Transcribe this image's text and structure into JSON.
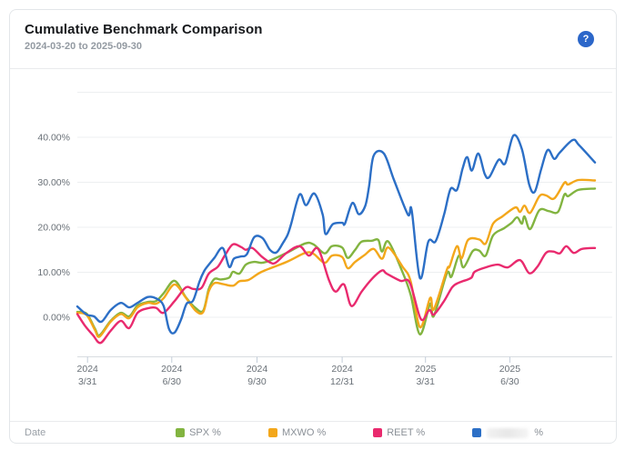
{
  "header": {
    "title": "Cumulative Benchmark Comparison",
    "subtitle": "2024-03-20 to 2025-09-30",
    "help_icon": "?"
  },
  "legend": {
    "date_label": "Date",
    "position": "bottom"
  },
  "colors": {
    "spx": "#82b440",
    "mxwo": "#f3a71b",
    "reet": "#e92a6e",
    "series4": "#2c6fc6",
    "help_badge": "#2b66c9",
    "grid": "#edeff1",
    "axis_line": "#d8dce1",
    "tick": "#c3cdd8",
    "axis_text": "#697077"
  },
  "chart_data": {
    "type": "line",
    "title": "Cumulative Benchmark Comparison",
    "xlabel": "Date",
    "ylabel": "",
    "unit": "%",
    "grid": true,
    "legend_position": "bottom",
    "x_range": [
      "2024-03-20",
      "2025-09-30"
    ],
    "ylim": [
      -8.5,
      52
    ],
    "y_axis": {
      "tick_values": [
        40,
        30,
        20,
        10,
        0
      ],
      "tick_labels": [
        "40.00%",
        "30.00%",
        "20.00%",
        "10.00%",
        "0.00%"
      ],
      "unlabeled_gridlines": [
        50
      ]
    },
    "x_axis": {
      "ticks": [
        {
          "year": "2024",
          "md": "3/31",
          "date": "2024-03-31"
        },
        {
          "year": "2024",
          "md": "6/30",
          "date": "2024-06-30"
        },
        {
          "year": "2024",
          "md": "9/30",
          "date": "2024-09-30"
        },
        {
          "year": "2024",
          "md": "12/31",
          "date": "2024-12-31"
        },
        {
          "year": "2025",
          "md": "3/31",
          "date": "2025-03-31"
        },
        {
          "year": "2025",
          "md": "6/30",
          "date": "2025-06-30"
        }
      ]
    },
    "series": [
      {
        "key": "spx",
        "label": "SPX %",
        "color": "#82b440",
        "obscured": false,
        "points": [
          [
            "2024-03-20",
            1.2
          ],
          [
            "2024-03-30",
            0.8
          ],
          [
            "2024-04-08",
            -2.5
          ],
          [
            "2024-04-13",
            -4.0
          ],
          [
            "2024-04-25",
            -0.8
          ],
          [
            "2024-05-06",
            1.0
          ],
          [
            "2024-05-15",
            0.2
          ],
          [
            "2024-05-24",
            2.6
          ],
          [
            "2024-06-04",
            3.4
          ],
          [
            "2024-06-13",
            3.6
          ],
          [
            "2024-06-21",
            5.3
          ],
          [
            "2024-07-03",
            8.1
          ],
          [
            "2024-07-15",
            4.5
          ],
          [
            "2024-07-26",
            2.0
          ],
          [
            "2024-08-03",
            1.5
          ],
          [
            "2024-08-09",
            6.3
          ],
          [
            "2024-08-15",
            8.5
          ],
          [
            "2024-08-22",
            8.4
          ],
          [
            "2024-08-31",
            8.8
          ],
          [
            "2024-09-04",
            10.1
          ],
          [
            "2024-09-11",
            9.7
          ],
          [
            "2024-09-18",
            11.7
          ],
          [
            "2024-09-27",
            12.3
          ],
          [
            "2024-10-05",
            12.1
          ],
          [
            "2024-10-14",
            12.6
          ],
          [
            "2024-11-01",
            14.3
          ],
          [
            "2024-11-21",
            16.4
          ],
          [
            "2024-11-30",
            16.2
          ],
          [
            "2024-12-12",
            14.2
          ],
          [
            "2024-12-20",
            15.8
          ],
          [
            "2024-12-31",
            15.5
          ],
          [
            "2025-01-06",
            13.2
          ],
          [
            "2025-01-14",
            15.0
          ],
          [
            "2025-01-21",
            16.8
          ],
          [
            "2025-02-01",
            17.0
          ],
          [
            "2025-02-08",
            17.2
          ],
          [
            "2025-02-12",
            14.6
          ],
          [
            "2025-02-19",
            16.8
          ],
          [
            "2025-03-06",
            10.1
          ],
          [
            "2025-03-15",
            5.0
          ],
          [
            "2025-03-25",
            -3.8
          ],
          [
            "2025-04-05",
            3.0
          ],
          [
            "2025-04-09",
            0.3
          ],
          [
            "2025-04-23",
            9.7
          ],
          [
            "2025-04-28",
            9.0
          ],
          [
            "2025-05-06",
            13.7
          ],
          [
            "2025-05-11",
            11.1
          ],
          [
            "2025-05-21",
            14.7
          ],
          [
            "2025-05-28",
            14.8
          ],
          [
            "2025-06-04",
            13.7
          ],
          [
            "2025-06-12",
            18.2
          ],
          [
            "2025-06-24",
            19.8
          ],
          [
            "2025-07-02",
            21.0
          ],
          [
            "2025-07-08",
            22.2
          ],
          [
            "2025-07-13",
            20.8
          ],
          [
            "2025-07-16",
            22.4
          ],
          [
            "2025-07-22",
            19.6
          ],
          [
            "2025-08-01",
            23.8
          ],
          [
            "2025-08-11",
            23.6
          ],
          [
            "2025-08-21",
            23.4
          ],
          [
            "2025-08-28",
            27.3
          ],
          [
            "2025-09-01",
            26.9
          ],
          [
            "2025-09-12",
            28.3
          ],
          [
            "2025-09-30",
            28.6
          ]
        ]
      },
      {
        "key": "mxwo",
        "label": "MXWO %",
        "color": "#f3a71b",
        "obscured": false,
        "points": [
          [
            "2024-03-20",
            1.0
          ],
          [
            "2024-03-30",
            0.5
          ],
          [
            "2024-04-08",
            -2.8
          ],
          [
            "2024-04-13",
            -4.3
          ],
          [
            "2024-04-25",
            -1.0
          ],
          [
            "2024-05-06",
            0.7
          ],
          [
            "2024-05-15",
            -0.2
          ],
          [
            "2024-05-24",
            2.2
          ],
          [
            "2024-06-04",
            3.2
          ],
          [
            "2024-06-13",
            3.0
          ],
          [
            "2024-06-21",
            4.2
          ],
          [
            "2024-07-03",
            7.3
          ],
          [
            "2024-07-15",
            4.4
          ],
          [
            "2024-07-26",
            1.4
          ],
          [
            "2024-08-03",
            1.2
          ],
          [
            "2024-08-09",
            5.8
          ],
          [
            "2024-08-15",
            7.6
          ],
          [
            "2024-08-24",
            7.4
          ],
          [
            "2024-09-04",
            7.0
          ],
          [
            "2024-09-11",
            8.0
          ],
          [
            "2024-09-21",
            8.3
          ],
          [
            "2024-10-05",
            10.1
          ],
          [
            "2024-11-01",
            12.3
          ],
          [
            "2024-11-21",
            14.3
          ],
          [
            "2024-11-30",
            14.1
          ],
          [
            "2024-12-12",
            12.1
          ],
          [
            "2024-12-20",
            13.7
          ],
          [
            "2024-12-31",
            13.4
          ],
          [
            "2025-01-06",
            10.9
          ],
          [
            "2025-01-14",
            12.3
          ],
          [
            "2025-01-24",
            13.8
          ],
          [
            "2025-02-03",
            15.2
          ],
          [
            "2025-02-12",
            13.0
          ],
          [
            "2025-02-19",
            15.5
          ],
          [
            "2025-03-06",
            11.3
          ],
          [
            "2025-03-15",
            8.0
          ],
          [
            "2025-03-25",
            -2.2
          ],
          [
            "2025-04-05",
            4.3
          ],
          [
            "2025-04-09",
            1.8
          ],
          [
            "2025-04-23",
            10.5
          ],
          [
            "2025-04-26",
            11.3
          ],
          [
            "2025-05-04",
            15.8
          ],
          [
            "2025-05-09",
            13.1
          ],
          [
            "2025-05-16",
            17.2
          ],
          [
            "2025-05-28",
            17.3
          ],
          [
            "2025-06-04",
            16.4
          ],
          [
            "2025-06-12",
            20.8
          ],
          [
            "2025-06-22",
            22.4
          ],
          [
            "2025-07-06",
            24.4
          ],
          [
            "2025-07-11",
            23.4
          ],
          [
            "2025-07-16",
            24.8
          ],
          [
            "2025-07-22",
            23.2
          ],
          [
            "2025-08-01",
            26.9
          ],
          [
            "2025-08-08",
            27.1
          ],
          [
            "2025-08-17",
            26.4
          ],
          [
            "2025-08-28",
            29.9
          ],
          [
            "2025-09-01",
            29.5
          ],
          [
            "2025-09-12",
            30.5
          ],
          [
            "2025-09-30",
            30.4
          ]
        ]
      },
      {
        "key": "reet",
        "label": "REET %",
        "color": "#e92a6e",
        "obscured": false,
        "points": [
          [
            "2024-03-20",
            0.7
          ],
          [
            "2024-03-28",
            -1.8
          ],
          [
            "2024-04-06",
            -4.0
          ],
          [
            "2024-04-14",
            -5.7
          ],
          [
            "2024-04-25",
            -3.0
          ],
          [
            "2024-05-06",
            -0.8
          ],
          [
            "2024-05-15",
            -2.4
          ],
          [
            "2024-05-24",
            1.0
          ],
          [
            "2024-06-04",
            2.0
          ],
          [
            "2024-06-13",
            2.1
          ],
          [
            "2024-06-21",
            1.0
          ],
          [
            "2024-07-03",
            3.6
          ],
          [
            "2024-07-15",
            6.6
          ],
          [
            "2024-07-23",
            6.3
          ],
          [
            "2024-08-01",
            6.5
          ],
          [
            "2024-08-09",
            9.7
          ],
          [
            "2024-08-19",
            11.3
          ],
          [
            "2024-08-27",
            14.0
          ],
          [
            "2024-09-04",
            16.2
          ],
          [
            "2024-09-13",
            15.6
          ],
          [
            "2024-09-18",
            15.0
          ],
          [
            "2024-09-25",
            15.4
          ],
          [
            "2024-10-05",
            13.5
          ],
          [
            "2024-10-14",
            12.2
          ],
          [
            "2024-10-20",
            12.1
          ],
          [
            "2024-11-01",
            14.3
          ],
          [
            "2024-11-15",
            15.8
          ],
          [
            "2024-11-25",
            13.7
          ],
          [
            "2024-12-05",
            15.2
          ],
          [
            "2024-12-17",
            8.1
          ],
          [
            "2024-12-24",
            5.7
          ],
          [
            "2025-01-02",
            7.3
          ],
          [
            "2025-01-10",
            2.5
          ],
          [
            "2025-01-21",
            5.7
          ],
          [
            "2025-02-01",
            8.5
          ],
          [
            "2025-02-12",
            10.4
          ],
          [
            "2025-02-17",
            9.7
          ],
          [
            "2025-03-04",
            8.1
          ],
          [
            "2025-03-14",
            7.7
          ],
          [
            "2025-03-26",
            -0.4
          ],
          [
            "2025-04-04",
            1.6
          ],
          [
            "2025-04-09",
            0.6
          ],
          [
            "2025-04-20",
            3.6
          ],
          [
            "2025-04-29",
            6.7
          ],
          [
            "2025-05-06",
            7.7
          ],
          [
            "2025-05-19",
            8.7
          ],
          [
            "2025-05-23",
            10.1
          ],
          [
            "2025-06-04",
            11.1
          ],
          [
            "2025-06-17",
            11.7
          ],
          [
            "2025-06-28",
            11.1
          ],
          [
            "2025-07-11",
            12.7
          ],
          [
            "2025-07-21",
            9.8
          ],
          [
            "2025-07-30",
            11.3
          ],
          [
            "2025-08-08",
            14.3
          ],
          [
            "2025-08-16",
            14.6
          ],
          [
            "2025-08-23",
            14.2
          ],
          [
            "2025-08-30",
            15.8
          ],
          [
            "2025-09-07",
            14.3
          ],
          [
            "2025-09-16",
            15.2
          ],
          [
            "2025-09-30",
            15.4
          ]
        ]
      },
      {
        "key": "series4",
        "label": "%",
        "color": "#2c6fc6",
        "obscured": true,
        "points": [
          [
            "2024-03-20",
            2.4
          ],
          [
            "2024-03-30",
            0.6
          ],
          [
            "2024-04-07",
            0.2
          ],
          [
            "2024-04-15",
            -1.0
          ],
          [
            "2024-04-25",
            1.6
          ],
          [
            "2024-05-06",
            3.2
          ],
          [
            "2024-05-15",
            2.2
          ],
          [
            "2024-05-24",
            3.2
          ],
          [
            "2024-06-04",
            4.5
          ],
          [
            "2024-06-13",
            4.2
          ],
          [
            "2024-06-21",
            2.6
          ],
          [
            "2024-06-27",
            -2.6
          ],
          [
            "2024-07-03",
            -3.4
          ],
          [
            "2024-07-10",
            -0.5
          ],
          [
            "2024-07-16",
            3.0
          ],
          [
            "2024-07-23",
            3.7
          ],
          [
            "2024-07-30",
            8.0
          ],
          [
            "2024-08-04",
            10.3
          ],
          [
            "2024-08-09",
            11.7
          ],
          [
            "2024-08-15",
            13.2
          ],
          [
            "2024-08-24",
            15.4
          ],
          [
            "2024-08-31",
            11.2
          ],
          [
            "2024-09-05",
            13.0
          ],
          [
            "2024-09-12",
            13.5
          ],
          [
            "2024-09-19",
            14.0
          ],
          [
            "2024-09-27",
            17.8
          ],
          [
            "2024-10-06",
            17.6
          ],
          [
            "2024-10-14",
            15.0
          ],
          [
            "2024-10-21",
            14.4
          ],
          [
            "2024-10-28",
            16.5
          ],
          [
            "2024-11-02",
            18.3
          ],
          [
            "2024-11-06",
            20.8
          ],
          [
            "2024-11-15",
            27.3
          ],
          [
            "2024-11-22",
            24.9
          ],
          [
            "2024-12-01",
            27.5
          ],
          [
            "2024-12-10",
            22.8
          ],
          [
            "2024-12-13",
            18.5
          ],
          [
            "2024-12-21",
            20.7
          ],
          [
            "2024-12-31",
            21.0
          ],
          [
            "2025-01-03",
            20.8
          ],
          [
            "2025-01-11",
            25.4
          ],
          [
            "2025-01-18",
            22.9
          ],
          [
            "2025-01-25",
            24.8
          ],
          [
            "2025-01-29",
            29.0
          ],
          [
            "2025-02-03",
            35.9
          ],
          [
            "2025-02-14",
            36.4
          ],
          [
            "2025-02-25",
            30.5
          ],
          [
            "2025-03-12",
            22.8
          ],
          [
            "2025-03-16",
            23.8
          ],
          [
            "2025-03-25",
            8.7
          ],
          [
            "2025-04-03",
            16.8
          ],
          [
            "2025-04-11",
            16.9
          ],
          [
            "2025-04-20",
            22.8
          ],
          [
            "2025-04-27",
            28.5
          ],
          [
            "2025-05-04",
            28.3
          ],
          [
            "2025-05-10",
            33.0
          ],
          [
            "2025-05-15",
            35.6
          ],
          [
            "2025-05-20",
            32.6
          ],
          [
            "2025-05-27",
            36.4
          ],
          [
            "2025-06-03",
            31.8
          ],
          [
            "2025-06-08",
            31.2
          ],
          [
            "2025-06-18",
            35.0
          ],
          [
            "2025-06-25",
            34.2
          ],
          [
            "2025-07-04",
            40.4
          ],
          [
            "2025-07-13",
            37.4
          ],
          [
            "2025-07-21",
            29.5
          ],
          [
            "2025-07-27",
            27.9
          ],
          [
            "2025-08-03",
            33.0
          ],
          [
            "2025-08-10",
            37.2
          ],
          [
            "2025-08-17",
            35.2
          ],
          [
            "2025-08-23",
            36.6
          ],
          [
            "2025-09-06",
            39.4
          ],
          [
            "2025-09-13",
            38.2
          ],
          [
            "2025-09-30",
            34.4
          ]
        ]
      }
    ]
  }
}
